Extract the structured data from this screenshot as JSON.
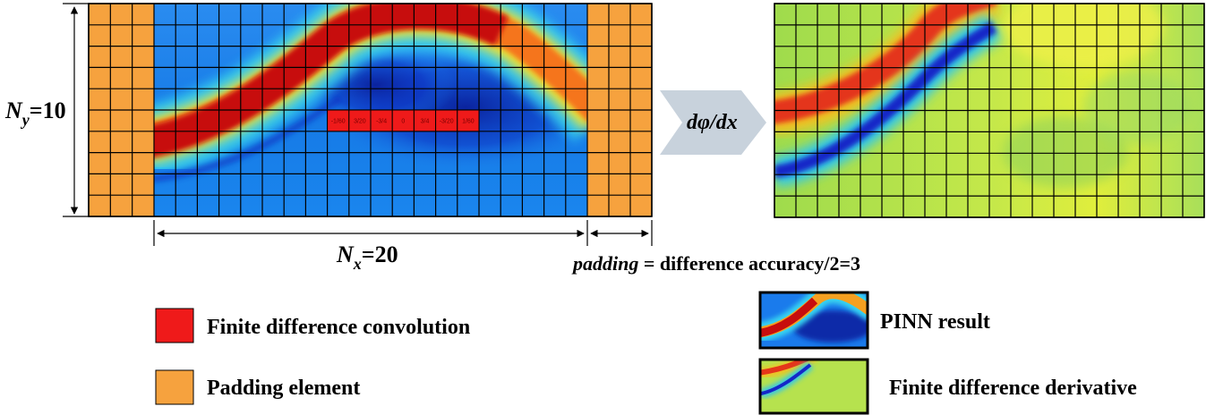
{
  "grid": {
    "ny_label": "N",
    "ny_sub": "y",
    "ny_value": "=10",
    "nx_label": "N",
    "nx_sub": "x",
    "nx_value": "=20",
    "columns": 20,
    "rows": 10,
    "padding_columns": 3,
    "kernel_values": [
      "-1/60",
      "3/20",
      "-3/4",
      "0",
      "3/4",
      "-3/20",
      "1/60"
    ]
  },
  "operator": {
    "text_d": "d",
    "text_phi": "φ",
    "text_rest": "/dx"
  },
  "padding_note": {
    "italic": "padding",
    "rest": " = difference accuracy/2=3"
  },
  "legend": {
    "items": [
      {
        "label": "Finite difference convolution",
        "color": "#ef1a1a"
      },
      {
        "label": "Padding element",
        "color": "#f6a23e"
      },
      {
        "label": "PINN result",
        "thumb": "pinn"
      },
      {
        "label": "Finite difference derivative",
        "thumb": "derivative"
      }
    ]
  },
  "colors": {
    "padding": "#f6a23e",
    "field_low": "#0d2fbf",
    "field_mid": "#1a7bec",
    "band_hot": "#d4150e",
    "derivative_bg": "#b4e24a",
    "arrow": "#c8d2dc"
  }
}
